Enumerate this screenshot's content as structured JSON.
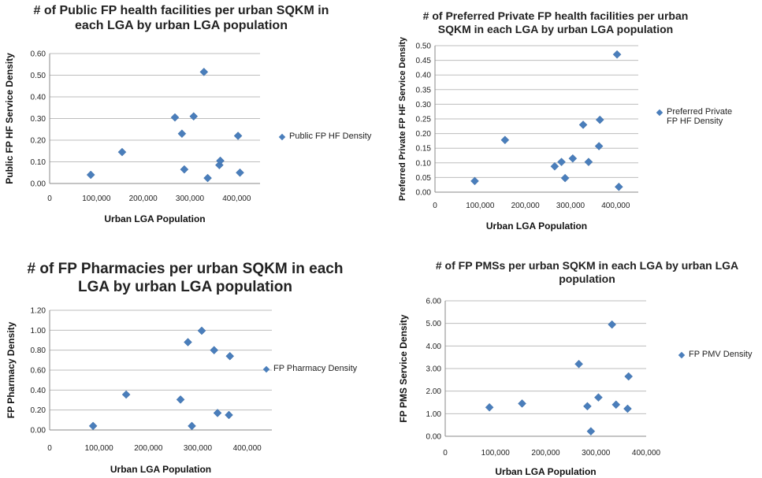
{
  "marker_color": "#4a7ebb",
  "chart_data": [
    {
      "type": "scatter",
      "title": "# of Public FP health facilities per urban SQKM in each LGA by urban LGA population",
      "xlabel": "Urban LGA Population",
      "ylabel": "Public FP HF Service Density",
      "xlim": [
        0,
        450000
      ],
      "ylim": [
        0,
        0.6
      ],
      "x_ticks": [
        "0",
        "100,000",
        "200,000",
        "300,000",
        "400,000"
      ],
      "y_ticks": [
        "0.00",
        "0.10",
        "0.20",
        "0.30",
        "0.40",
        "0.50",
        "0.60"
      ],
      "series": [
        {
          "name": "Public FP HF Density",
          "x": [
            88000,
            155000,
            268000,
            283000,
            288000,
            308000,
            330000,
            338000,
            363000,
            365000,
            403000,
            407000
          ],
          "y": [
            0.04,
            0.145,
            0.305,
            0.23,
            0.065,
            0.31,
            0.515,
            0.025,
            0.085,
            0.105,
            0.22,
            0.05
          ]
        }
      ]
    },
    {
      "type": "scatter",
      "title": "# of Preferred Private FP health facilities per urban SQKM in each LGA by urban LGA population",
      "xlabel": "Urban LGA Population",
      "ylabel": "Preferred Private FP HF Service Density",
      "xlim": [
        0,
        450000
      ],
      "ylim": [
        0,
        0.5
      ],
      "x_ticks": [
        "0",
        "100,000",
        "200,000",
        "300,000",
        "400,000"
      ],
      "y_ticks": [
        "0.00",
        "0.05",
        "0.10",
        "0.15",
        "0.20",
        "0.25",
        "0.30",
        "0.35",
        "0.40",
        "0.45",
        "0.50"
      ],
      "series": [
        {
          "name": "Preferred Private FP HF Density",
          "x": [
            88000,
            155000,
            265000,
            280000,
            288000,
            305000,
            328000,
            340000,
            363000,
            365000,
            403000,
            407000
          ],
          "y": [
            0.038,
            0.178,
            0.088,
            0.103,
            0.048,
            0.115,
            0.23,
            0.103,
            0.157,
            0.247,
            0.47,
            0.018
          ]
        }
      ]
    },
    {
      "type": "scatter",
      "title": "# of FP Pharmacies per urban SQKM in each LGA by urban LGA population",
      "xlabel": "Urban LGA Population",
      "ylabel": "FP Pharmacy Density",
      "xlim": [
        0,
        450000
      ],
      "ylim": [
        0,
        1.2
      ],
      "x_ticks": [
        "0",
        "100,000",
        "200,000",
        "300,000",
        "400,000"
      ],
      "y_ticks": [
        "0.00",
        "0.20",
        "0.40",
        "0.60",
        "0.80",
        "1.00",
        "1.20"
      ],
      "series": [
        {
          "name": "FP Pharmacy Density",
          "x": [
            88000,
            155000,
            265000,
            280000,
            288000,
            308000,
            333000,
            340000,
            363000,
            365000
          ],
          "y": [
            0.04,
            0.355,
            0.305,
            0.88,
            0.04,
            0.995,
            0.8,
            0.17,
            0.15,
            0.74
          ]
        }
      ]
    },
    {
      "type": "scatter",
      "title": "# of FP PMSs per urban SQKM in each LGA by urban LGA population",
      "xlabel": "Urban LGA Population",
      "ylabel": "FP PMS Service Density",
      "xlim": [
        0,
        400000
      ],
      "ylim": [
        0,
        6
      ],
      "x_ticks": [
        "0",
        "100,000",
        "200,000",
        "300,000",
        "400,000"
      ],
      "y_ticks": [
        "0.00",
        "1.00",
        "2.00",
        "3.00",
        "4.00",
        "5.00",
        "6.00"
      ],
      "series": [
        {
          "name": "FP PMV Density",
          "x": [
            88000,
            153000,
            266000,
            283000,
            290000,
            305000,
            332000,
            340000,
            363000,
            365000
          ],
          "y": [
            1.28,
            1.45,
            3.2,
            1.33,
            0.22,
            1.72,
            4.95,
            1.4,
            1.22,
            2.65
          ]
        }
      ]
    }
  ]
}
